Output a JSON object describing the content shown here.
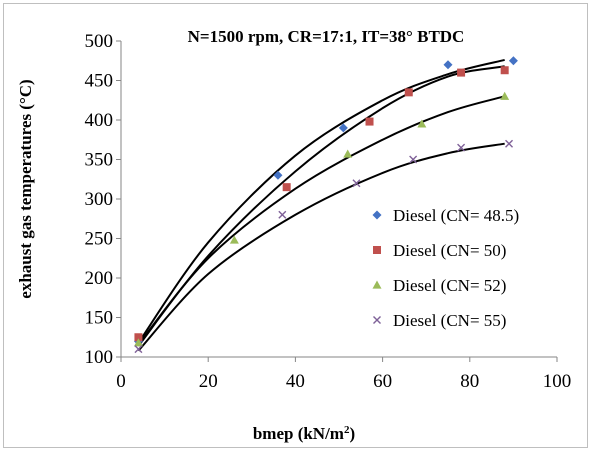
{
  "chart_data": {
    "type": "scatter",
    "title": "N=1500 rpm, CR=17:1, IT=38° BTDC",
    "xlabel_main": "bmep (kN/m",
    "xlabel_sup": "2",
    "xlabel_end": ")",
    "ylabel": "exhaust  gas temperatures (°C)",
    "xlim": [
      0,
      100
    ],
    "ylim": [
      100,
      500
    ],
    "xticks": [
      0,
      20,
      40,
      60,
      80,
      100
    ],
    "yticks": [
      100,
      150,
      200,
      250,
      300,
      350,
      400,
      450,
      500
    ],
    "grid": false,
    "legend_position": "lower-right",
    "series": [
      {
        "name": "Diesel (CN= 48.5)",
        "marker": "diamond",
        "color": "#4472C4",
        "points": [
          [
            4,
            120
          ],
          [
            36,
            330
          ],
          [
            51,
            390
          ],
          [
            75,
            470
          ],
          [
            90,
            475
          ]
        ],
        "trend": [
          [
            4,
            118
          ],
          [
            20,
            245
          ],
          [
            40,
            355
          ],
          [
            60,
            425
          ],
          [
            75,
            458
          ],
          [
            88,
            476
          ]
        ]
      },
      {
        "name": "Diesel (CN= 50)",
        "marker": "square",
        "color": "#C0504D",
        "points": [
          [
            4,
            125
          ],
          [
            38,
            315
          ],
          [
            57,
            398
          ],
          [
            66,
            435
          ],
          [
            78,
            460
          ],
          [
            88,
            463
          ]
        ],
        "trend": [
          [
            4,
            114
          ],
          [
            20,
            228
          ],
          [
            40,
            335
          ],
          [
            60,
            415
          ],
          [
            75,
            455
          ],
          [
            88,
            468
          ]
        ]
      },
      {
        "name": "Diesel (CN= 52)",
        "marker": "triangle",
        "color": "#9BBB59",
        "points": [
          [
            4,
            118
          ],
          [
            26,
            248
          ],
          [
            52,
            357
          ],
          [
            69,
            395
          ],
          [
            88,
            430
          ]
        ],
        "trend": [
          [
            4,
            116
          ],
          [
            20,
            225
          ],
          [
            40,
            313
          ],
          [
            60,
            375
          ],
          [
            75,
            410
          ],
          [
            88,
            430
          ]
        ]
      },
      {
        "name": "Diesel (CN= 55)",
        "marker": "x",
        "color": "#7F6198",
        "points": [
          [
            4,
            110
          ],
          [
            37,
            280
          ],
          [
            54,
            320
          ],
          [
            67,
            350
          ],
          [
            78,
            365
          ],
          [
            89,
            370
          ]
        ],
        "trend": [
          [
            4,
            108
          ],
          [
            20,
            205
          ],
          [
            40,
            280
          ],
          [
            60,
            333
          ],
          [
            75,
            358
          ],
          [
            88,
            370
          ]
        ]
      }
    ]
  }
}
